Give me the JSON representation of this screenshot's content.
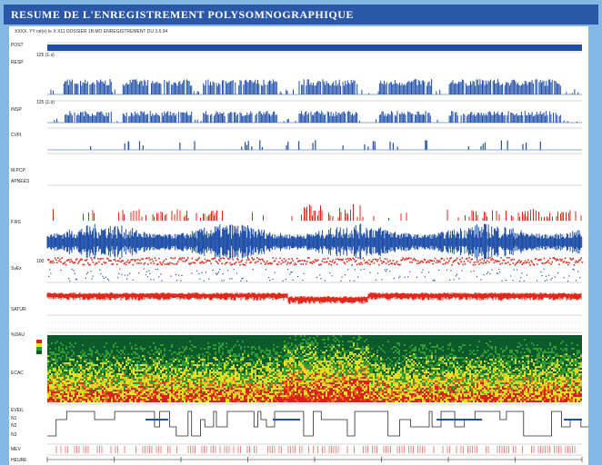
{
  "window": {
    "title": "RESUME DE L'ENREGISTREMENT POLYSOMNOGRAPHIQUE"
  },
  "header": {
    "info": "XXXX, YY  né(e) le X  X11  DOSSIER  1B.MO ENREGISTREMENT DU 3.6.94"
  },
  "channels": [
    {
      "label": "POST",
      "scale": ""
    },
    {
      "label": "RESP.",
      "scale": "125 (1.s)"
    },
    {
      "label": "INSP.",
      "scale": "125 (1.s)"
    },
    {
      "label": "CVFI",
      "scale": ""
    },
    {
      "label": "M.PCP",
      "scale": ""
    },
    {
      "label": "APNEES",
      "scale": ""
    },
    {
      "label": "F.RS",
      "scale": ""
    },
    {
      "label": "SvEx",
      "scale": "100"
    },
    {
      "label": "SATUR",
      "scale": ""
    },
    {
      "label": "%DAU",
      "scale": ""
    },
    {
      "label": "ECAC",
      "scale": ""
    },
    {
      "label": "EVEIL",
      "scale": ""
    },
    {
      "label": "N1",
      "scale": ""
    },
    {
      "label": "N2",
      "scale": ""
    },
    {
      "label": "N3",
      "scale": ""
    },
    {
      "label": "MEV",
      "scale": ""
    },
    {
      "label": "HEURE",
      "scale": ""
    }
  ],
  "colors": {
    "title_bg": "#2a57a8",
    "trace_blue": "#1f4fa8",
    "trace_red": "#e0281c",
    "frame_bg": "#84b7e4"
  }
}
